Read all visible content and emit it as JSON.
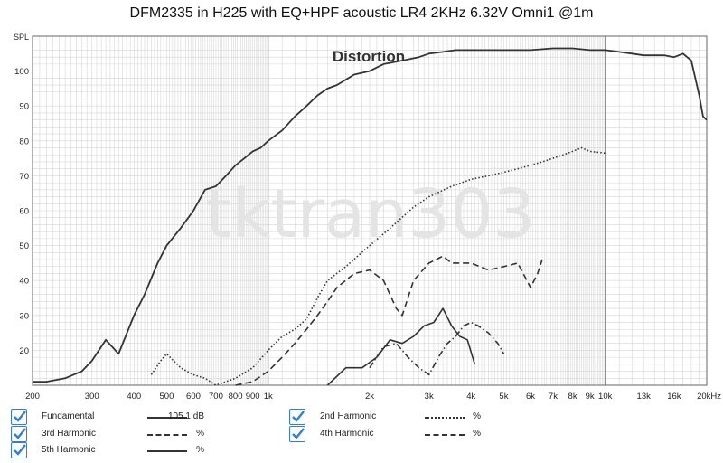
{
  "chart_data": {
    "type": "line",
    "title": "DFM2335 in H225 with EQ+HPF acoustic LR4 2KHz 6.32V Omni1 @1m",
    "ylabel": "SPL",
    "annotation": "Distortion",
    "watermark": "tktran303",
    "x_scale": "log",
    "xlim": [
      200,
      20000
    ],
    "ylim": [
      10,
      110
    ],
    "grid": true,
    "x_ticks": [
      {
        "value": 200,
        "label": "200"
      },
      {
        "value": 300,
        "label": "300"
      },
      {
        "value": 400,
        "label": "400"
      },
      {
        "value": 500,
        "label": "500"
      },
      {
        "value": 600,
        "label": "600"
      },
      {
        "value": 700,
        "label": "700"
      },
      {
        "value": 800,
        "label": "800"
      },
      {
        "value": 900,
        "label": "900"
      },
      {
        "value": 1000,
        "label": "1k"
      },
      {
        "value": 2000,
        "label": "2k"
      },
      {
        "value": 3000,
        "label": "3k"
      },
      {
        "value": 4000,
        "label": "4k"
      },
      {
        "value": 5000,
        "label": "5k"
      },
      {
        "value": 6000,
        "label": "6k"
      },
      {
        "value": 7000,
        "label": "7k"
      },
      {
        "value": 8000,
        "label": "8k"
      },
      {
        "value": 9000,
        "label": "9k"
      },
      {
        "value": 10000,
        "label": "10k"
      },
      {
        "value": 13000,
        "label": "13k"
      },
      {
        "value": 16000,
        "label": "16k"
      },
      {
        "value": 20000,
        "label": "20kHz"
      }
    ],
    "y_ticks": [
      20,
      30,
      40,
      50,
      60,
      70,
      80,
      90,
      100
    ],
    "series": [
      {
        "name": "Fundamental",
        "style": "solid",
        "width": 1.8,
        "x": [
          200,
          220,
          250,
          280,
          300,
          330,
          360,
          400,
          430,
          470,
          500,
          550,
          600,
          650,
          700,
          750,
          800,
          850,
          900,
          950,
          1000,
          1100,
          1200,
          1300,
          1400,
          1500,
          1600,
          1800,
          2000,
          2200,
          2500,
          2800,
          3000,
          3300,
          3600,
          4000,
          4500,
          5000,
          5500,
          6000,
          7000,
          8000,
          9000,
          10000,
          11000,
          12000,
          13000,
          14000,
          15000,
          16000,
          17000,
          18000,
          19000,
          19500,
          20000
        ],
        "y": [
          11,
          11,
          12,
          14,
          17,
          23,
          19,
          30,
          36,
          45,
          50,
          55,
          60,
          66,
          67,
          70,
          73,
          75,
          77,
          78,
          80,
          83,
          87,
          90,
          93,
          95,
          96,
          99,
          100,
          102,
          103,
          104,
          105,
          105.5,
          106,
          106,
          106,
          106,
          106,
          106,
          106.5,
          106.5,
          106,
          106,
          105.5,
          105,
          104.5,
          104.5,
          104.5,
          104,
          105,
          103,
          93,
          87,
          86
        ]
      },
      {
        "name": "2nd Harmonic",
        "style": "dotted",
        "width": 1.6,
        "x": [
          450,
          480,
          500,
          550,
          600,
          650,
          700,
          800,
          900,
          1000,
          1100,
          1200,
          1300,
          1400,
          1500,
          1700,
          2000,
          2300,
          2700,
          3000,
          3500,
          4000,
          4500,
          5000,
          5500,
          6000,
          6500,
          7000,
          7500,
          8000,
          8500,
          9000,
          10000
        ],
        "y": [
          13,
          17,
          19,
          15,
          13,
          12,
          10,
          12,
          15,
          20,
          24,
          26,
          29,
          35,
          40,
          44,
          50,
          55,
          61,
          64,
          67,
          69,
          70,
          71,
          72,
          73,
          74,
          75,
          76,
          77,
          78,
          77,
          76.5
        ]
      },
      {
        "name": "3rd Harmonic",
        "style": "dashed",
        "width": 1.6,
        "x": [
          800,
          900,
          1000,
          1100,
          1200,
          1300,
          1400,
          1500,
          1600,
          1800,
          2000,
          2200,
          2400,
          2500,
          2700,
          3000,
          3300,
          3500,
          4000,
          4500,
          5000,
          5500,
          6000,
          6300,
          6500
        ],
        "y": [
          10,
          11,
          14,
          18,
          22,
          26,
          30,
          34,
          38,
          42,
          43,
          40,
          32,
          30,
          40,
          45,
          47,
          45,
          45,
          43,
          44,
          45,
          38,
          42,
          46
        ]
      },
      {
        "name": "4th Harmonic",
        "style": "dashdot",
        "width": 1.6,
        "x": [
          2000,
          2200,
          2400,
          2600,
          2800,
          3000,
          3200,
          3400,
          3600,
          3800,
          4000,
          4200,
          4500,
          4800,
          5000
        ],
        "y": [
          15,
          21,
          22,
          18,
          15,
          13,
          18,
          22,
          24,
          27,
          28,
          27,
          25,
          22,
          19
        ]
      },
      {
        "name": "5th Harmonic",
        "style": "solid",
        "width": 1.6,
        "x": [
          1500,
          1700,
          1900,
          2100,
          2300,
          2500,
          2700,
          2900,
          3100,
          3300,
          3500,
          3700,
          3900,
          4100
        ],
        "y": [
          10,
          15,
          15,
          18,
          23,
          22,
          24,
          27,
          28,
          32,
          27,
          24,
          23,
          16
        ]
      }
    ]
  },
  "legend": [
    {
      "label": "Fundamental",
      "value": "105.1 dB",
      "style": "solid"
    },
    {
      "label": "2nd Harmonic",
      "value": "%",
      "style": "dotted"
    },
    {
      "label": "3rd Harmonic",
      "value": "%",
      "style": "dashed"
    },
    {
      "label": "4th Harmonic",
      "value": "%",
      "style": "dashdot"
    },
    {
      "label": "5th Harmonic",
      "value": "%",
      "style": "solid"
    }
  ],
  "colors": {
    "curve": "#333333",
    "grid_minor": "#d6d6d6",
    "grid_major": "#777777",
    "checkbox": "#2f7fd8",
    "watermark": "#e4e4e4"
  }
}
